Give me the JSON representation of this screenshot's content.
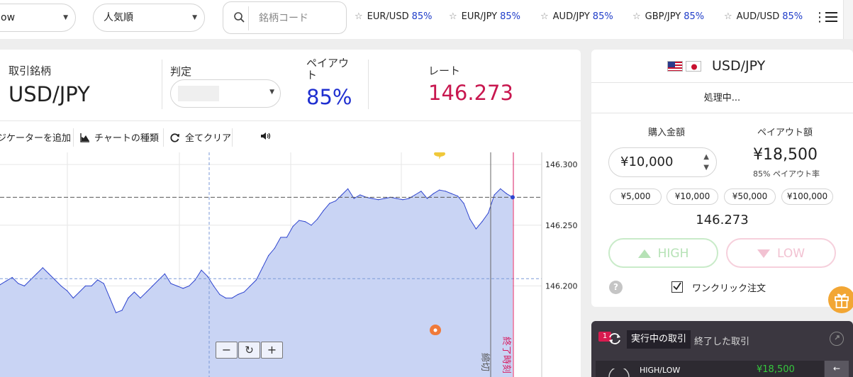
{
  "topbar": {
    "sort_select": "ow",
    "popular_select": "人気順",
    "search_placeholder": "銘柄コード",
    "favorites": [
      {
        "pair": "EUR/USD",
        "payout": "85%"
      },
      {
        "pair": "EUR/JPY",
        "payout": "85%"
      },
      {
        "pair": "AUD/JPY",
        "payout": "85%"
      },
      {
        "pair": "GBP/JPY",
        "payout": "85%"
      },
      {
        "pair": "AUD/USD",
        "payout": "85%"
      }
    ]
  },
  "info": {
    "symbol_label": "取引銘柄",
    "symbol": "USD/JPY",
    "judge_label": "判定",
    "payout_label": "ペイアウト",
    "payout": "85%",
    "rate_label": "レート",
    "rate": "146.273"
  },
  "chart_toolbar": {
    "indicator": "ジケーターを追加",
    "chart_type": "チャートの種類",
    "clear_all": "全てクリア"
  },
  "chart": {
    "y_ticks": [
      "146.300",
      "146.250",
      "146.200"
    ],
    "deadline_label": "締切",
    "end_time_label": "終了時刻",
    "zoom_buttons": [
      "−",
      "↻",
      "+"
    ],
    "current_rate": 146.273,
    "colors": {
      "area": "#c9d4f4",
      "line": "#2f45cf",
      "end_line": "#d81b60"
    }
  },
  "chart_data": {
    "type": "area",
    "ylim": [
      146.125,
      146.31
    ],
    "yticks": [
      146.3,
      146.25,
      146.2
    ],
    "values": [
      146.201,
      146.204,
      146.207,
      146.202,
      146.2,
      146.205,
      146.21,
      146.215,
      146.21,
      146.205,
      146.2,
      146.196,
      146.19,
      146.195,
      146.2,
      146.2,
      146.205,
      146.202,
      146.19,
      146.178,
      146.18,
      146.19,
      146.195,
      146.19,
      146.195,
      146.2,
      146.205,
      146.21,
      146.202,
      146.2,
      146.198,
      146.2,
      146.205,
      146.213,
      146.208,
      146.2,
      146.193,
      146.19,
      146.19,
      146.193,
      146.195,
      146.2,
      146.205,
      146.215,
      146.225,
      146.231,
      146.24,
      146.24,
      146.249,
      146.254,
      146.253,
      146.25,
      146.255,
      146.262,
      146.268,
      146.27,
      146.275,
      146.28,
      146.272,
      146.275,
      146.273,
      146.272,
      146.271,
      146.272,
      146.273,
      146.272,
      146.271,
      146.272,
      146.275,
      146.278,
      146.272,
      146.276,
      146.279,
      146.278,
      146.276,
      146.274,
      146.268,
      146.255,
      146.247,
      146.253,
      146.26,
      146.275,
      146.28,
      146.276,
      146.273
    ]
  },
  "trade": {
    "pair": "USD/JPY",
    "status": "処理中...",
    "amount_label": "購入金額",
    "payout_amount_label": "ペイアウト額",
    "amount": "¥10,000",
    "payout_amount": "¥18,500",
    "payout_rate": "85% ペイアウト率",
    "quick_amounts": [
      "¥5,000",
      "¥10,000",
      "¥50,000",
      "¥100,000"
    ],
    "price": "146.273",
    "high": "HIGH",
    "low": "LOW",
    "help": "?",
    "one_click": "ワンクリック注文"
  },
  "positions": {
    "badge": "1",
    "active_tab": "実行中の取引",
    "closed_tab": "終了した取引",
    "row_type": "HIGH/LOW",
    "row_amount": "¥18,500"
  }
}
